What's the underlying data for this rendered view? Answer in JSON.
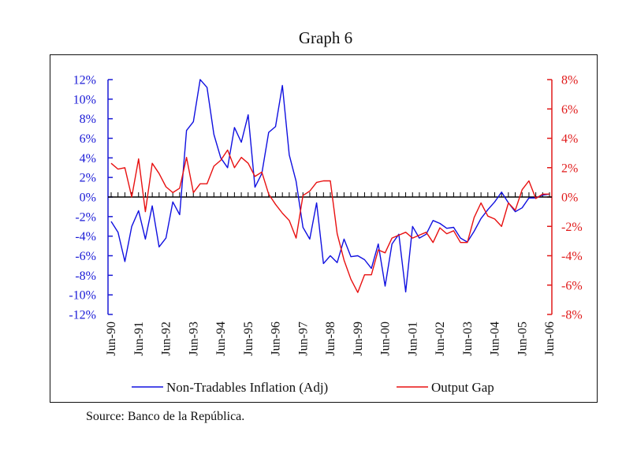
{
  "title": "Graph 6",
  "source": "Source: Banco de la República.",
  "colors": {
    "left_axis": "#1a1ad6",
    "right_axis": "#e01a1a",
    "inflation": "#1010e0",
    "output_gap": "#e81010",
    "zero_line": "#000000"
  },
  "chart_data": {
    "type": "line",
    "title": "Graph 6",
    "xlabel": "",
    "ylabel": "",
    "y2label": "",
    "grid": false,
    "legend_position": "bottom",
    "frequency": "quarterly",
    "x_tick_labels": [
      "Jun-90",
      "Jun-91",
      "Jun-92",
      "Jun-93",
      "Jun-94",
      "Jun-95",
      "Jun-96",
      "Jun-97",
      "Jun-98",
      "Jun-99",
      "Jun-00",
      "Jun-01",
      "Jun-02",
      "Jun-03",
      "Jun-04",
      "Jun-05",
      "Jun-06"
    ],
    "x_start": "Jun-90",
    "x_end": "Jun-06",
    "left_axis": {
      "ylim": [
        -12,
        12
      ],
      "ticks": [
        12,
        10,
        8,
        6,
        4,
        2,
        0,
        -2,
        -4,
        -6,
        -8,
        -10,
        -12
      ],
      "tick_labels": [
        "12%",
        "10%",
        "8%",
        "6%",
        "4%",
        "2%",
        "0%",
        "-2%",
        "-4%",
        "-6%",
        "-8%",
        "-10%",
        "-12%"
      ]
    },
    "right_axis": {
      "ylim": [
        -8,
        8
      ],
      "ticks": [
        8,
        6,
        4,
        2,
        0,
        -2,
        -4,
        -6,
        -8
      ],
      "tick_labels": [
        "8%",
        "6%",
        "4%",
        "2%",
        "0%",
        "-2%",
        "-4%",
        "-6%",
        "-8%"
      ]
    },
    "series": [
      {
        "name": "Non-Tradables Inflation (Adj)",
        "axis": "left",
        "color": "#1010e0",
        "values": [
          -2.5,
          -3.6,
          -6.6,
          -3.0,
          -1.4,
          -4.3,
          -0.9,
          -5.1,
          -4.2,
          -0.5,
          -1.8,
          6.8,
          7.7,
          12.0,
          11.2,
          6.4,
          4.0,
          3.0,
          7.1,
          5.6,
          8.4,
          1.0,
          2.4,
          6.6,
          7.2,
          11.4,
          4.3,
          1.6,
          -3.1,
          -4.3,
          -0.6,
          -6.8,
          -6.0,
          -6.7,
          -4.3,
          -6.1,
          -6.0,
          -6.4,
          -7.3,
          -4.8,
          -9.1,
          -4.8,
          -3.8,
          -9.7,
          -3.0,
          -4.2,
          -3.8,
          -2.4,
          -2.7,
          -3.2,
          -3.1,
          -4.2,
          -4.6,
          -3.5,
          -2.2,
          -1.3,
          -0.5,
          0.5,
          -0.6,
          -1.5,
          -1.1,
          -0.1,
          -0.1,
          0.2,
          0.3
        ]
      },
      {
        "name": "Output Gap",
        "axis": "right",
        "color": "#e81010",
        "values": [
          2.3,
          1.9,
          2.0,
          0.0,
          2.6,
          -1.0,
          2.3,
          1.6,
          0.7,
          0.3,
          0.6,
          2.7,
          0.3,
          0.9,
          0.9,
          2.1,
          2.5,
          3.2,
          2.0,
          2.7,
          2.3,
          1.4,
          1.7,
          0.2,
          -0.5,
          -1.1,
          -1.6,
          -2.8,
          0.1,
          0.4,
          1.0,
          1.1,
          1.1,
          -2.5,
          -4.3,
          -5.6,
          -6.5,
          -5.3,
          -5.3,
          -3.6,
          -3.8,
          -2.8,
          -2.6,
          -2.4,
          -2.8,
          -2.6,
          -2.4,
          -3.1,
          -2.1,
          -2.5,
          -2.3,
          -3.1,
          -3.1,
          -1.4,
          -0.4,
          -1.3,
          -1.5,
          -2.0,
          -0.4,
          -0.9,
          0.5,
          1.1,
          -0.1,
          0.2,
          0.2
        ]
      }
    ]
  }
}
